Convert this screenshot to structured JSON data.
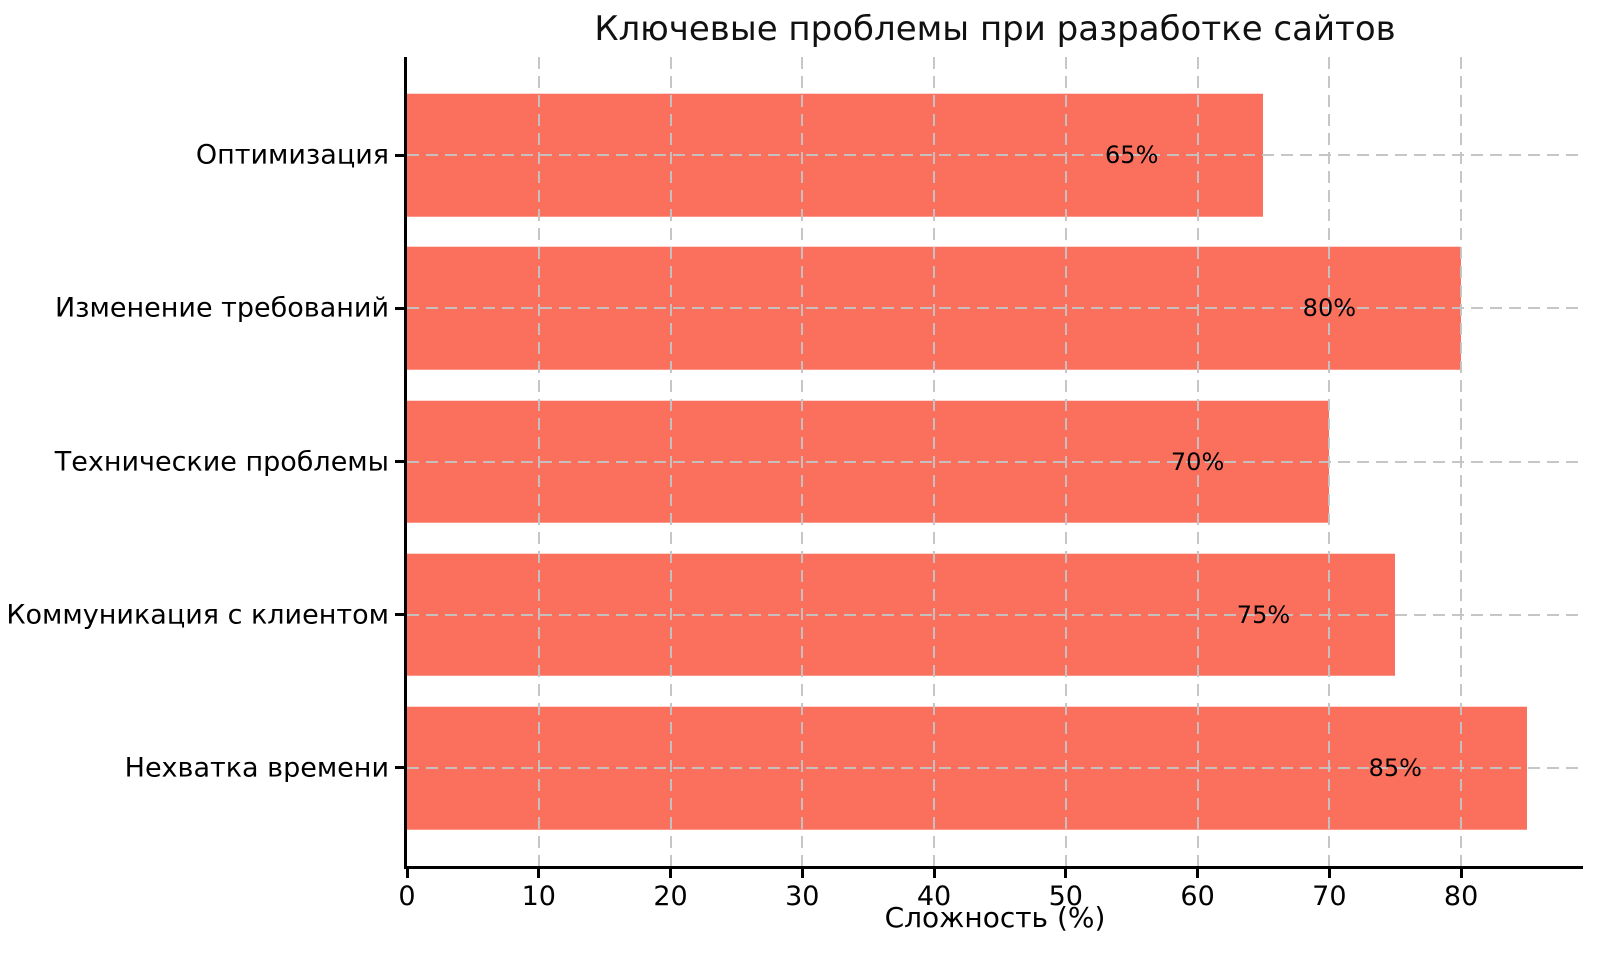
{
  "chart_data": {
    "type": "bar",
    "orientation": "horizontal",
    "title": "Ключевые проблемы при разработке сайтов",
    "xlabel": "Сложность (%)",
    "ylabel": "",
    "categories": [
      "Оптимизация",
      "Изменение требований",
      "Технические проблемы",
      "Коммуникация с клиентом",
      "Нехватка времени"
    ],
    "values": [
      65,
      80,
      70,
      75,
      85
    ],
    "bar_labels": [
      "65%",
      "80%",
      "70%",
      "75%",
      "85%"
    ],
    "x_ticks": [
      0,
      10,
      20,
      30,
      40,
      50,
      60,
      70,
      80
    ],
    "xlim": [
      0,
      89.25
    ],
    "legend": "none",
    "grid": "dashed gridlines on both axes, drawn over bars",
    "bar_color": "#fb6f5d",
    "gridline_color": "#c3c3c3",
    "axis_color": "#000000",
    "text_color": "#000000",
    "value_label_offset_units": -10,
    "band_pad_units": 0.64,
    "bar_height_fraction": 0.8
  }
}
